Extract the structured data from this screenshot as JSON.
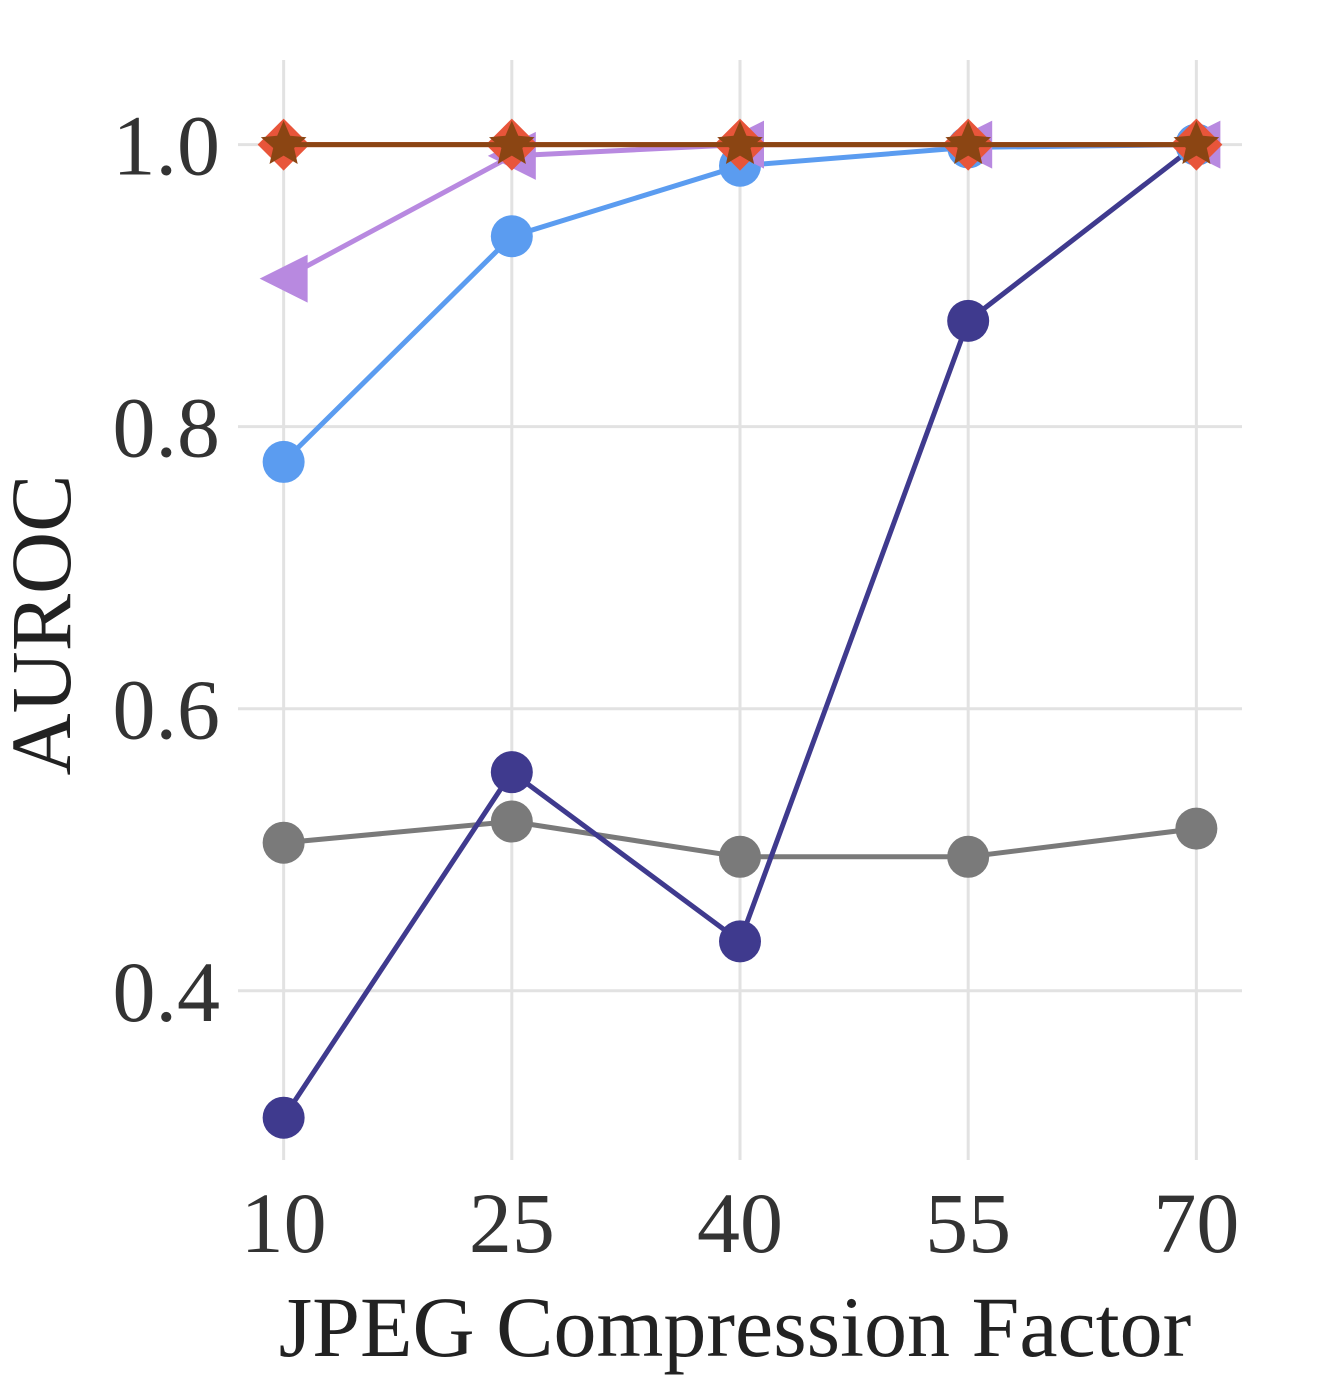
{
  "chart_data": {
    "type": "line",
    "xlabel": "JPEG Compression Factor",
    "ylabel": "AUROC",
    "x": [
      10,
      25,
      40,
      55,
      70
    ],
    "x_tick_labels": [
      "10",
      "25",
      "40",
      "55",
      "70"
    ],
    "y_ticks": [
      0.4,
      0.6,
      0.8,
      1.0
    ],
    "y_tick_labels": [
      "0.4",
      "0.6",
      "0.8",
      "1.0"
    ],
    "xlim": [
      7,
      73
    ],
    "ylim": [
      0.28,
      1.06
    ],
    "grid": true,
    "legend": "none",
    "series": [
      {
        "color": "#7a7a7a",
        "marker": "circle",
        "values": [
          0.505,
          0.52,
          0.495,
          0.495,
          0.515
        ]
      },
      {
        "color": "#3f3a8e",
        "marker": "circle",
        "values": [
          0.31,
          0.555,
          0.435,
          0.875,
          1.0
        ]
      },
      {
        "color": "#5b9cf0",
        "marker": "circle",
        "values": [
          0.775,
          0.935,
          0.985,
          0.998,
          1.0
        ]
      },
      {
        "color": "#b889e0",
        "marker": "triangle-left",
        "values": [
          0.905,
          0.992,
          1.0,
          1.0,
          1.0
        ]
      },
      {
        "color": "#e8553a",
        "marker": "diamond",
        "values": [
          1.0,
          1.0,
          1.0,
          1.0,
          1.0
        ]
      },
      {
        "color": "#8b4513",
        "marker": "star",
        "values": [
          1.0,
          1.0,
          1.0,
          1.0,
          1.0
        ]
      }
    ]
  }
}
